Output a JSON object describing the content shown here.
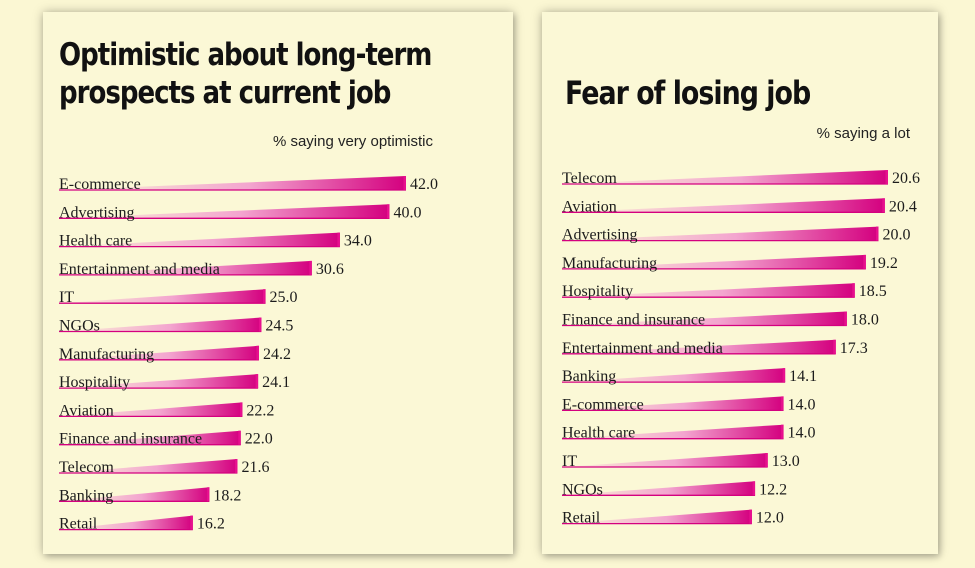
{
  "chart_data": [
    {
      "type": "bar",
      "title": "Optimistic about long-term prospects at current job",
      "title_lines": [
        "Optimistic about long-term",
        "prospects at current job"
      ],
      "subtitle": "% saying very optimistic",
      "categories": [
        "E-commerce",
        "Advertising",
        "Health care",
        "Entertainment and media",
        "IT",
        "NGOs",
        "Manufacturing",
        "Hospitality",
        "Aviation",
        "Finance and insurance",
        "Telecom",
        "Banking",
        "Retail"
      ],
      "values": [
        42.0,
        40.0,
        34.0,
        30.6,
        25.0,
        24.5,
        24.2,
        24.1,
        22.2,
        22.0,
        21.6,
        18.2,
        16.2
      ],
      "value_labels": [
        "42.0",
        "40.0",
        "34.0",
        "30.6",
        "25.0",
        "24.5",
        "24.2",
        "24.1",
        "22.2",
        "22.0",
        "21.6",
        "18.2",
        "16.2"
      ],
      "orientation": "horizontal",
      "colors": {
        "bar_dark": "#d4007f",
        "bar_light": "#fbf8d6",
        "bar_end": "#e7108e"
      }
    },
    {
      "type": "bar",
      "title": "Fear of losing job",
      "title_lines": [
        "Fear of losing job"
      ],
      "subtitle": "% saying a lot",
      "categories": [
        "Telecom",
        "Aviation",
        "Advertising",
        "Manufacturing",
        "Hospitality",
        "Finance and insurance",
        "Entertainment and media",
        "Banking",
        "E-commerce",
        "Health care",
        "IT",
        "NGOs",
        "Retail"
      ],
      "values": [
        20.6,
        20.4,
        20.0,
        19.2,
        18.5,
        18.0,
        17.3,
        14.1,
        14.0,
        14.0,
        13.0,
        12.2,
        12.0
      ],
      "value_labels": [
        "20.6",
        "20.4",
        "20.0",
        "19.2",
        "18.5",
        "18.0",
        "17.3",
        "14.1",
        "14.0",
        "14.0",
        "13.0",
        "12.2",
        "12.0"
      ],
      "orientation": "horizontal",
      "colors": {
        "bar_dark": "#d4007f",
        "bar_light": "#fbf8d6",
        "bar_end": "#e7108e"
      }
    }
  ],
  "colors": {
    "background": "#fbf7d3",
    "panel": "#fbf8d6",
    "text": "#111111"
  }
}
